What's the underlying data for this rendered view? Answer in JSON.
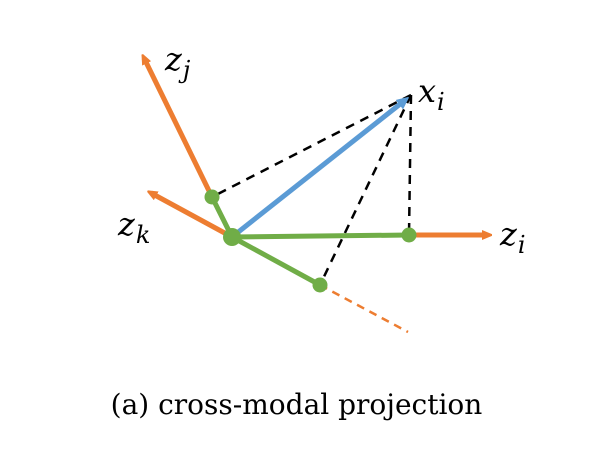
{
  "figure": {
    "caption": "(a) cross-modal projection",
    "vectors": {
      "zj": {
        "base": "z",
        "sub": "j",
        "color": "#ED7D31"
      },
      "zk": {
        "base": "z",
        "sub": "k",
        "color": "#ED7D31"
      },
      "zi": {
        "base": "z",
        "sub": "i",
        "color": "#ED7D31"
      },
      "xi": {
        "base": "x",
        "sub": "i",
        "color": "#5B9BD5"
      }
    },
    "projection_color": "#70AD47",
    "guide_line_color": "#000000"
  }
}
